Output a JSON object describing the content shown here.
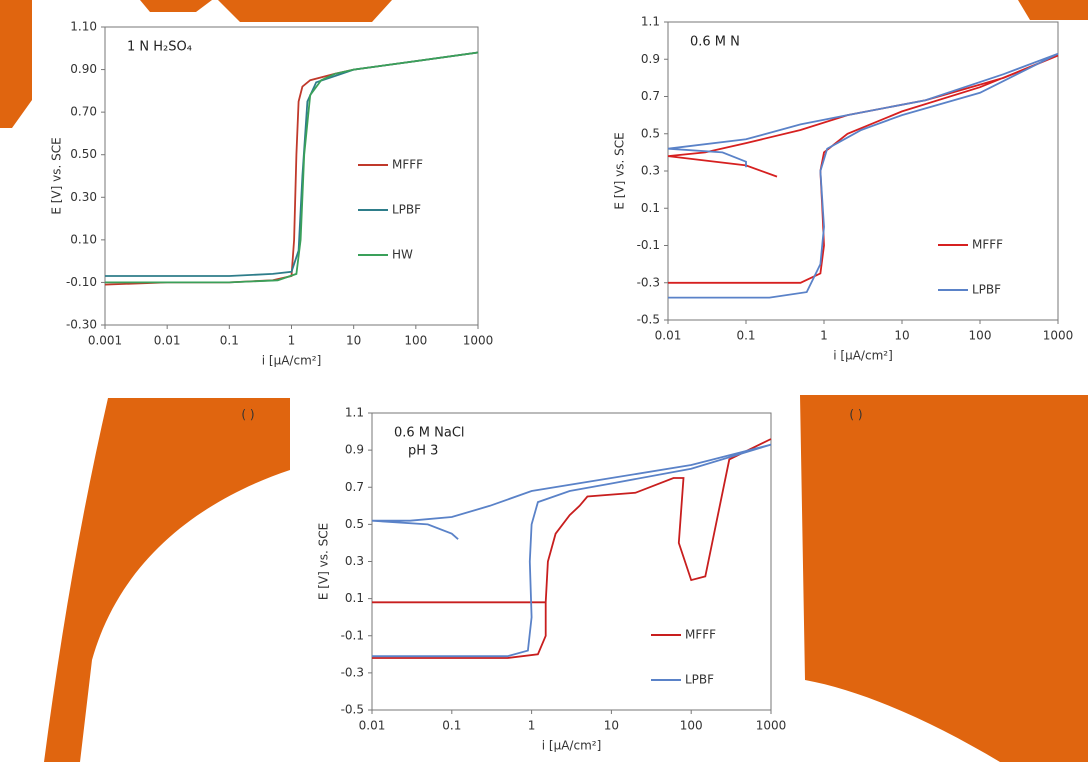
{
  "chart_data": [
    {
      "type": "line",
      "xscale": "log",
      "grid": false,
      "legend": "center right",
      "annotations": [
        "1 N H₂SO₄"
      ],
      "xlabel": "i [μA/cm²]",
      "ylabel": "E [V] vs. SCE",
      "xlim": [
        0.001,
        1000
      ],
      "xticks": [
        0.001,
        0.01,
        0.1,
        1,
        10,
        100,
        1000
      ],
      "ylim": [
        -0.3,
        1.1
      ],
      "yticks": [
        {
          "value": -0.3,
          "label": "-0.30"
        },
        {
          "value": -0.1,
          "label": "-0.10"
        },
        {
          "value": 0.1,
          "label": "0.10"
        },
        {
          "value": 0.3,
          "label": "0.30"
        },
        {
          "value": 0.5,
          "label": "0.50"
        },
        {
          "value": 0.7,
          "label": "0.70"
        },
        {
          "value": 0.9,
          "label": "0.90"
        },
        {
          "value": 1.1,
          "label": "1.10"
        }
      ],
      "series": [
        {
          "name": "MFFF",
          "color": "#c0392b",
          "x": [
            0.001,
            0.01,
            0.1,
            0.5,
            1.0,
            1.1,
            1.2,
            1.3,
            1.5,
            2,
            5,
            10,
            100,
            1000
          ],
          "values": [
            -0.11,
            -0.1,
            -0.1,
            -0.09,
            -0.07,
            0.1,
            0.5,
            0.75,
            0.82,
            0.85,
            0.88,
            0.9,
            0.94,
            0.98
          ]
        },
        {
          "name": "LPBF",
          "color": "#2e7d8a",
          "x": [
            0.001,
            0.01,
            0.1,
            0.5,
            1.0,
            1.3,
            1.5,
            1.8,
            2.5,
            5,
            10,
            100,
            1000
          ],
          "values": [
            -0.07,
            -0.07,
            -0.07,
            -0.06,
            -0.05,
            0.05,
            0.4,
            0.75,
            0.84,
            0.87,
            0.9,
            0.94,
            0.98
          ]
        },
        {
          "name": "HW",
          "color": "#3aa05a",
          "x": [
            0.001,
            0.01,
            0.1,
            0.6,
            1.2,
            1.4,
            1.6,
            2,
            3,
            5,
            10,
            100,
            1000
          ],
          "values": [
            -0.1,
            -0.1,
            -0.1,
            -0.09,
            -0.06,
            0.1,
            0.5,
            0.78,
            0.85,
            0.88,
            0.9,
            0.94,
            0.98
          ]
        }
      ]
    },
    {
      "type": "line",
      "xscale": "log",
      "grid": false,
      "legend": "lower right",
      "annotations": [
        "0.6 M N"
      ],
      "xlabel": "i [μA/cm²]",
      "ylabel": "E [V] vs. SCE",
      "xlim": [
        0.01,
        1000
      ],
      "xticks": [
        0.01,
        0.1,
        1,
        10,
        100,
        1000
      ],
      "ylim": [
        -0.5,
        1.1
      ],
      "yticks": [
        -0.5,
        -0.3,
        -0.1,
        0.1,
        0.3,
        0.5,
        0.7,
        0.9,
        1.1
      ],
      "series": [
        {
          "name": "MFFF",
          "color": "#d62020",
          "x": [
            0.01,
            0.1,
            0.5,
            0.9,
            1.0,
            0.95,
            0.9,
            1.0,
            2,
            10,
            100,
            1000,
            200,
            20,
            2,
            0.5,
            0.1,
            0.03,
            0.01,
            0.1,
            0.25
          ],
          "values": [
            -0.3,
            -0.3,
            -0.3,
            -0.25,
            -0.1,
            0.1,
            0.3,
            0.4,
            0.5,
            0.62,
            0.75,
            0.92,
            0.8,
            0.68,
            0.6,
            0.52,
            0.45,
            0.4,
            0.38,
            0.33,
            0.27
          ]
        },
        {
          "name": "LPBF",
          "color": "#5a82c8",
          "x": [
            0.01,
            0.2,
            0.6,
            0.9,
            1.0,
            0.9,
            1.1,
            3,
            10,
            100,
            1000,
            200,
            20,
            2,
            0.5,
            0.1,
            0.01,
            0.05,
            0.1,
            0.1
          ],
          "values": [
            -0.38,
            -0.38,
            -0.35,
            -0.2,
            0,
            0.3,
            0.42,
            0.52,
            0.6,
            0.72,
            0.93,
            0.82,
            0.68,
            0.6,
            0.55,
            0.47,
            0.42,
            0.4,
            0.35,
            0.32
          ]
        }
      ]
    },
    {
      "type": "line",
      "xscale": "log",
      "grid": false,
      "legend": "lower right",
      "annotations": [
        "0.6 M NaCl",
        "pH 3"
      ],
      "xlabel": "i [μA/cm²]",
      "ylabel": "E [V] vs. SCE",
      "xlim": [
        0.01,
        1000
      ],
      "xticks": [
        0.01,
        0.1,
        1,
        10,
        100,
        1000
      ],
      "ylim": [
        -0.5,
        1.1
      ],
      "yticks": [
        -0.5,
        -0.3,
        -0.1,
        0.1,
        0.3,
        0.5,
        0.7,
        0.9,
        1.1
      ],
      "series": [
        {
          "name": "MFFF",
          "color": "#c81e1e",
          "x": [
            0.01,
            0.5,
            1.2,
            1.5,
            1.5,
            1.6,
            2,
            3,
            4,
            5,
            20,
            60,
            80,
            70,
            100,
            150,
            300,
            1000,
            null,
            0.01,
            1,
            1.5
          ],
          "values": [
            -0.22,
            -0.22,
            -0.2,
            -0.1,
            0.08,
            0.3,
            0.45,
            0.55,
            0.6,
            0.65,
            0.67,
            0.75,
            0.75,
            0.4,
            0.2,
            0.22,
            0.85,
            0.96,
            null,
            0.08,
            0.08,
            0.08
          ]
        },
        {
          "name": "LPBF",
          "color": "#5a82c8",
          "x": [
            0.01,
            0.5,
            0.9,
            1.0,
            0.95,
            1.0,
            1.2,
            3,
            10,
            100,
            1000,
            100,
            10,
            1,
            0.3,
            0.1,
            0.03,
            0.01,
            0.05,
            0.1,
            0.12
          ],
          "values": [
            -0.21,
            -0.21,
            -0.18,
            0,
            0.3,
            0.5,
            0.62,
            0.68,
            0.72,
            0.8,
            0.93,
            0.82,
            0.75,
            0.68,
            0.6,
            0.54,
            0.52,
            0.52,
            0.5,
            0.45,
            0.42
          ]
        }
      ]
    }
  ],
  "captions": [
    "( )",
    "( )"
  ]
}
